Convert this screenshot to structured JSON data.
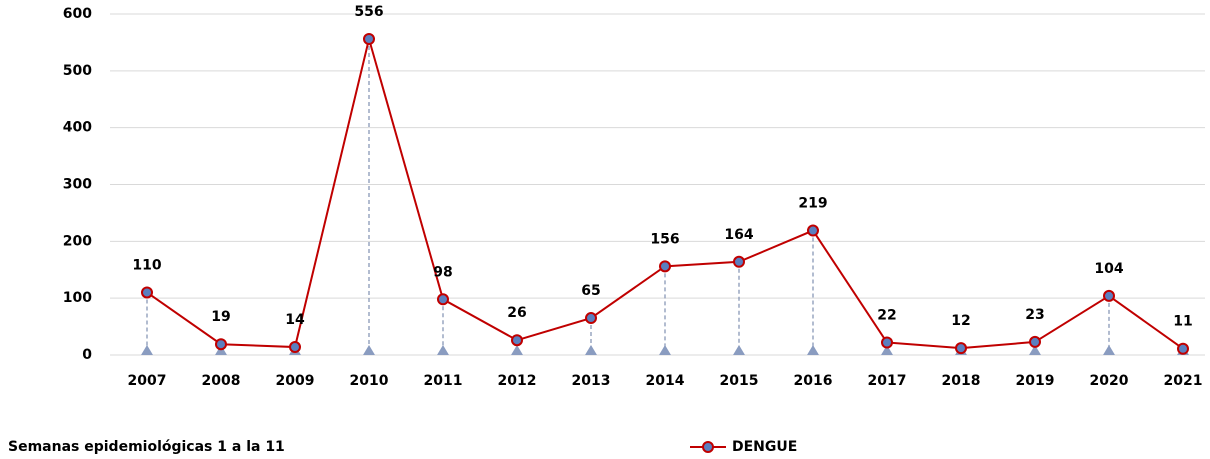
{
  "chart_data": {
    "type": "line",
    "categories": [
      "2007",
      "2008",
      "2009",
      "2010",
      "2011",
      "2012",
      "2013",
      "2014",
      "2015",
      "2016",
      "2017",
      "2018",
      "2019",
      "2020",
      "2021"
    ],
    "series": [
      {
        "name": "DENGUE",
        "color": "#c00000",
        "values": [
          110,
          19,
          14,
          556,
          98,
          26,
          65,
          156,
          164,
          219,
          22,
          12,
          23,
          104,
          11
        ]
      }
    ],
    "ylim": [
      0,
      600
    ],
    "yticks": [
      0,
      100,
      200,
      300,
      400,
      500,
      600
    ],
    "grid": true,
    "footnote": "Semanas epidemiológicas 1 a la 11"
  }
}
